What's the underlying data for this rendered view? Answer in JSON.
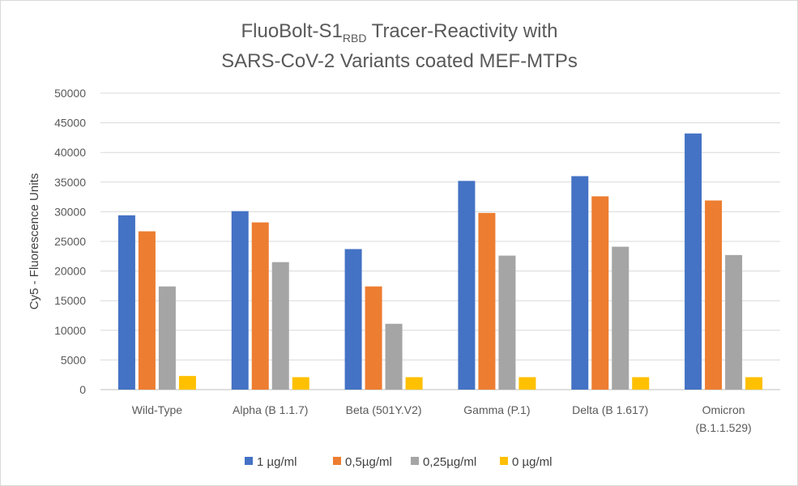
{
  "chart_data": {
    "type": "bar",
    "title_line1_main": "FluoBolt-S1",
    "title_line1_sub": "RBD",
    "title_line1_rest": " Tracer-Reactivity with",
    "title_line2": "SARS-CoV-2 Variants coated MEF-MTPs",
    "ylabel": "Cy5 - Fluorescence Units",
    "xlabel": "",
    "ylim": [
      0,
      50000
    ],
    "ytick_step": 5000,
    "yticks": [
      "0",
      "5000",
      "10000",
      "15000",
      "20000",
      "25000",
      "30000",
      "35000",
      "40000",
      "45000",
      "50000"
    ],
    "grid": true,
    "legend_position": "bottom",
    "categories": [
      [
        "Wild-Type"
      ],
      [
        "Alpha (B 1.1.7)"
      ],
      [
        "Beta (501Y.V2)"
      ],
      [
        "Gamma (P.1)"
      ],
      [
        "Delta (B 1.617)"
      ],
      [
        "Omicron",
        "(B.1.1.529)"
      ]
    ],
    "series": [
      {
        "name": "1 µg/ml",
        "color": "#4472c4",
        "values": [
          29400,
          30100,
          23700,
          35200,
          36000,
          43200
        ]
      },
      {
        "name": "0,5µg/ml",
        "color": "#ed7d31",
        "values": [
          26700,
          28200,
          17400,
          29800,
          32600,
          31900
        ]
      },
      {
        "name": "0,25µg/ml",
        "color": "#a5a5a5",
        "values": [
          17400,
          21500,
          11100,
          22600,
          24100,
          22700
        ]
      },
      {
        "name": "0 µg/ml",
        "color": "#ffc000",
        "values": [
          2300,
          2100,
          2100,
          2100,
          2100,
          2100
        ]
      }
    ]
  }
}
